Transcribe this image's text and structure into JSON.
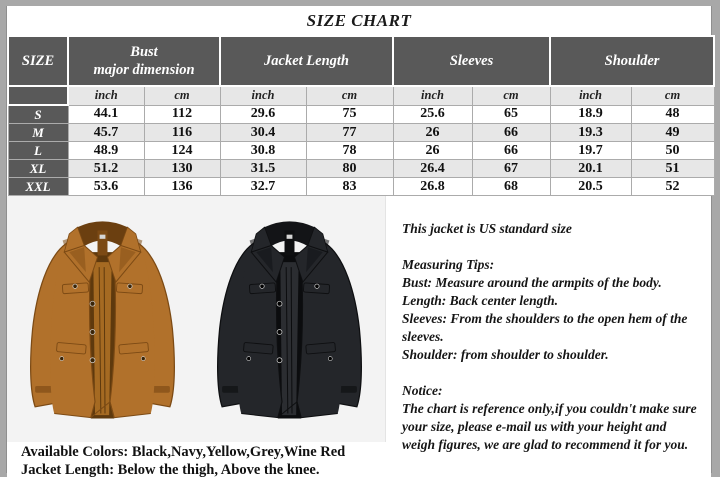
{
  "title": "SIZE CHART",
  "table": {
    "col_groups": [
      {
        "label": "SIZE"
      },
      {
        "label": "Bust\nmajor dimension"
      },
      {
        "label": "Jacket Length"
      },
      {
        "label": "Sleeves"
      },
      {
        "label": "Shoulder"
      }
    ],
    "unit_labels": [
      "inch",
      "cm"
    ],
    "rows": [
      {
        "size": "S",
        "values": [
          "44.1",
          "112",
          "29.6",
          "75",
          "25.6",
          "65",
          "18.9",
          "48"
        ]
      },
      {
        "size": "M",
        "values": [
          "45.7",
          "116",
          "30.4",
          "77",
          "26",
          "66",
          "19.3",
          "49"
        ]
      },
      {
        "size": "L",
        "values": [
          "48.9",
          "124",
          "30.8",
          "78",
          "26",
          "66",
          "19.7",
          "50"
        ]
      },
      {
        "size": "XL",
        "values": [
          "51.2",
          "130",
          "31.5",
          "80",
          "26.4",
          "67",
          "20.1",
          "51"
        ]
      },
      {
        "size": "XXL",
        "values": [
          "53.6",
          "136",
          "32.7",
          "83",
          "26.8",
          "68",
          "20.5",
          "52"
        ]
      }
    ]
  },
  "info": {
    "standard_size": "This jacket is US standard size",
    "measuring_tips_heading": "Measuring Tips:",
    "tips": [
      "Bust: Measure around the armpits of the body.",
      "Length: Back center length.",
      "Sleeves: From the shoulders to the open hem of the sleeves.",
      "Shoulder: from shoulder to shoulder."
    ],
    "notice_heading": "Notice:",
    "notice": "The chart is reference only,if you couldn't make sure your size, please e-mail us with your height and weigh figures, we are glad to recommend it for you."
  },
  "footer": {
    "available_colors": "Available Colors: Black,Navy,Yellow,Grey,Wine Red",
    "jacket_length": "Jacket Length: Below the thigh, Above the knee."
  },
  "jackets": [
    {
      "name": "camel-coat",
      "palette": {
        "body": "#b1712b",
        "bodyLight": "#c4undefined",
        "shade": "#7c4a14",
        "lining": "#a56a22",
        "liningDark": "#5e390d",
        "collar": "#6b3f10",
        "button": "#3a2406"
      }
    },
    {
      "name": "black-coat",
      "palette": {
        "body": "#24262a",
        "bodyLight": "#34373c",
        "shade": "#0e0f11",
        "lining": "#2b2d31",
        "liningDark": "#0b0c0e",
        "collar": "#131417",
        "button": "#000000"
      }
    }
  ],
  "colors": {
    "header_bg": "#595959",
    "row_alt_bg": "#e7e7e7",
    "frame": "#a8a8a8",
    "photo_bg": "#f3f3f3"
  }
}
